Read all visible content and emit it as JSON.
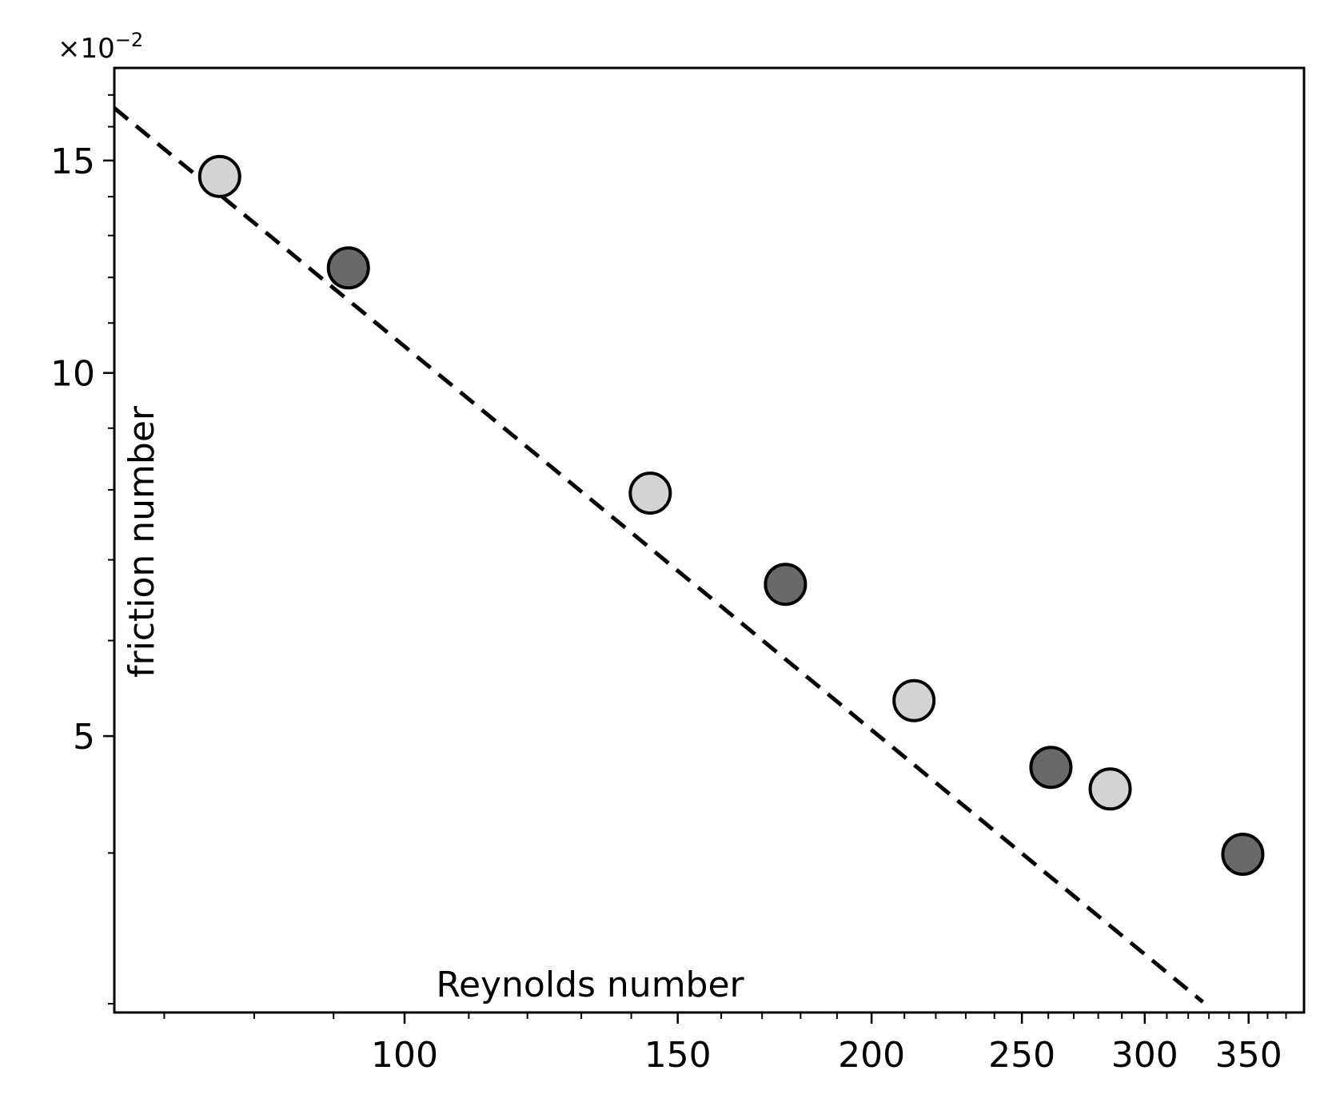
{
  "chart_data": {
    "type": "scatter",
    "title": "",
    "xlabel": "Reynolds number",
    "ylabel": "friction number",
    "x_scale": "log",
    "y_scale": "log",
    "xlim": [
      65,
      380
    ],
    "ylim": [
      0.0295,
      0.179
    ],
    "y_offset_label": "×10",
    "y_offset_exponent": "−2",
    "x_ticks": [
      {
        "value": 100,
        "label": "100"
      },
      {
        "value": 150,
        "label": "150"
      },
      {
        "value": 200,
        "label": "200"
      },
      {
        "value": 250,
        "label": "250"
      },
      {
        "value": 300,
        "label": "300"
      },
      {
        "value": 350,
        "label": "350"
      }
    ],
    "x_minor_ticks": [
      70,
      80,
      90,
      110,
      120,
      130,
      140,
      160,
      170,
      180,
      190,
      210,
      220,
      230,
      240,
      260,
      270,
      280,
      290,
      310,
      320,
      330,
      340,
      360,
      370
    ],
    "y_ticks": [
      {
        "value": 0.05,
        "label": "5"
      },
      {
        "value": 0.1,
        "label": "10"
      },
      {
        "value": 0.15,
        "label": "15"
      }
    ],
    "y_minor_ticks": [
      0.03,
      0.04,
      0.06,
      0.07,
      0.08,
      0.09,
      0.11,
      0.12,
      0.13,
      0.14,
      0.16,
      0.17
    ],
    "series": [
      {
        "marker_color": "#d3d3d3",
        "points": [
          {
            "x": 76,
            "y": 0.1455
          },
          {
            "x": 144,
            "y": 0.0795
          },
          {
            "x": 213,
            "y": 0.0535
          },
          {
            "x": 285,
            "y": 0.0452
          }
        ]
      },
      {
        "marker_color": "#696969",
        "points": [
          {
            "x": 92,
            "y": 0.1222
          },
          {
            "x": 176,
            "y": 0.0668
          },
          {
            "x": 261,
            "y": 0.0471
          },
          {
            "x": 347,
            "y": 0.0399
          }
        ]
      }
    ],
    "fit_line": {
      "style": "dashed",
      "color": "#000000",
      "points": [
        {
          "x": 65,
          "y": 0.1658
        },
        {
          "x": 327,
          "y": 0.0301
        }
      ]
    },
    "grid": false,
    "legend": "none"
  }
}
